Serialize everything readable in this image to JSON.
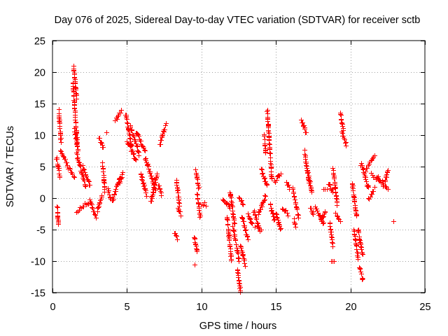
{
  "chart_data": {
    "type": "scatter",
    "title": "Day 076 of 2025, Sidereal Day-to-day VTEC variation (SDTVAR) for receiver sctb",
    "xlabel": "GPS time / hours",
    "ylabel": "SDTVAR / TECUs",
    "xlim": [
      0,
      25
    ],
    "ylim": [
      -15,
      25
    ],
    "xticks": [
      0,
      5,
      10,
      15,
      20,
      25
    ],
    "yticks": [
      -15,
      -10,
      -5,
      0,
      5,
      10,
      15,
      20,
      25
    ],
    "grid": true,
    "marker": "+",
    "series": [
      {
        "name": "SDTVAR",
        "color": "#ff0000",
        "segments": [
          {
            "x": [
              0.25,
              0.48
            ],
            "y": [
              6.5,
              3.5
            ]
          },
          {
            "x": [
              0.3,
              0.38
            ],
            "y": [
              -1.5,
              -4.2
            ]
          },
          {
            "x": [
              0.4,
              0.55
            ],
            "y": [
              13.8,
              9.0
            ]
          },
          {
            "x": [
              0.5,
              1.0
            ],
            "y": [
              7.5,
              5.5
            ]
          },
          {
            "x": [
              1.0,
              1.45
            ],
            "y": [
              5.0,
              3.5
            ]
          },
          {
            "x": [
              1.4,
              1.6
            ],
            "y": [
              21.0,
              16.0
            ]
          },
          {
            "x": [
              1.35,
              1.5
            ],
            "y": [
              18.5,
              13.5
            ]
          },
          {
            "x": [
              1.5,
              1.65
            ],
            "y": [
              13.0,
              9.0
            ]
          },
          {
            "x": [
              1.45,
              1.7
            ],
            "y": [
              11.0,
              7.5
            ]
          },
          {
            "x": [
              1.6,
              2.2
            ],
            "y": [
              7.0,
              2.0
            ]
          },
          {
            "x": [
              1.6,
              2.5
            ],
            "y": [
              -2.0,
              -0.5
            ]
          },
          {
            "x": [
              2.0,
              2.5
            ],
            "y": [
              5.0,
              2.0
            ]
          },
          {
            "x": [
              2.5,
              2.9
            ],
            "y": [
              -0.5,
              -3.0
            ]
          },
          {
            "x": [
              3.0,
              3.3
            ],
            "y": [
              -2.0,
              0.5
            ]
          },
          {
            "x": [
              3.1,
              3.4
            ],
            "y": [
              9.5,
              8.0
            ]
          },
          {
            "x": [
              3.35,
              3.5
            ],
            "y": [
              5.5,
              1.0
            ]
          },
          {
            "x": [
              3.6,
              3.6
            ],
            "y": [
              10.5,
              10.5
            ]
          },
          {
            "x": [
              3.7,
              3.9
            ],
            "y": [
              1.5,
              0.0
            ]
          },
          {
            "x": [
              4.0,
              4.5
            ],
            "y": [
              -0.5,
              3.5
            ]
          },
          {
            "x": [
              4.2,
              4.6
            ],
            "y": [
              12.5,
              13.8
            ]
          },
          {
            "x": [
              4.5,
              4.7
            ],
            "y": [
              2.5,
              4.0
            ]
          },
          {
            "x": [
              4.9,
              5.3
            ],
            "y": [
              13.5,
              8.0
            ]
          },
          {
            "x": [
              5.0,
              5.6
            ],
            "y": [
              9.0,
              6.0
            ]
          },
          {
            "x": [
              5.2,
              5.8
            ],
            "y": [
              11.5,
              7.0
            ]
          },
          {
            "x": [
              5.6,
              6.2
            ],
            "y": [
              10.5,
              7.5
            ]
          },
          {
            "x": [
              5.9,
              6.3
            ],
            "y": [
              4.0,
              0.5
            ]
          },
          {
            "x": [
              6.2,
              6.9
            ],
            "y": [
              6.5,
              1.5
            ]
          },
          {
            "x": [
              6.6,
              7.0
            ],
            "y": [
              -0.5,
              4.0
            ]
          },
          {
            "x": [
              7.1,
              7.3
            ],
            "y": [
              2.0,
              0.5
            ]
          },
          {
            "x": [
              7.2,
              7.6
            ],
            "y": [
              8.5,
              11.8
            ]
          },
          {
            "x": [
              8.2,
              8.35
            ],
            "y": [
              -5.5,
              -6.5
            ]
          },
          {
            "x": [
              8.3,
              8.5
            ],
            "y": [
              3.0,
              -1.0
            ]
          },
          {
            "x": [
              8.4,
              8.6
            ],
            "y": [
              -1.5,
              -2.5
            ]
          },
          {
            "x": [
              9.5,
              9.7
            ],
            "y": [
              -6.0,
              -8.5
            ]
          },
          {
            "x": [
              9.55,
              9.55
            ],
            "y": [
              -10.5,
              -10.5
            ]
          },
          {
            "x": [
              9.6,
              9.8
            ],
            "y": [
              4.5,
              1.5
            ]
          },
          {
            "x": [
              9.7,
              9.9
            ],
            "y": [
              0.5,
              -3.0
            ]
          },
          {
            "x": [
              10.0,
              10.3
            ],
            "y": [
              -1.0,
              -1.0
            ]
          },
          {
            "x": [
              11.4,
              11.9
            ],
            "y": [
              0.0,
              -1.5
            ]
          },
          {
            "x": [
              11.7,
              12.0
            ],
            "y": [
              -3.0,
              -10.0
            ]
          },
          {
            "x": [
              11.9,
              12.2
            ],
            "y": [
              1.0,
              -4.0
            ]
          },
          {
            "x": [
              12.1,
              12.5
            ],
            "y": [
              -4.5,
              -10.0
            ]
          },
          {
            "x": [
              12.4,
              12.6
            ],
            "y": [
              -11.5,
              -14.8
            ]
          },
          {
            "x": [
              12.6,
              12.9
            ],
            "y": [
              -7.5,
              -10.5
            ]
          },
          {
            "x": [
              12.7,
              13.1
            ],
            "y": [
              -3.0,
              -6.5
            ]
          },
          {
            "x": [
              12.5,
              12.8
            ],
            "y": [
              0.0,
              -1.0
            ]
          },
          {
            "x": [
              13.1,
              13.4
            ],
            "y": [
              -2.5,
              -4.0
            ]
          },
          {
            "x": [
              13.5,
              13.9
            ],
            "y": [
              -2.0,
              -5.0
            ]
          },
          {
            "x": [
              13.6,
              14.0
            ],
            "y": [
              -4.5,
              -4.8
            ]
          },
          {
            "x": [
              13.8,
              14.3
            ],
            "y": [
              -2.5,
              0.5
            ]
          },
          {
            "x": [
              14.0,
              14.4
            ],
            "y": [
              4.5,
              2.0
            ]
          },
          {
            "x": [
              14.2,
              14.3
            ],
            "y": [
              10.0,
              7.0
            ]
          },
          {
            "x": [
              14.4,
              14.7
            ],
            "y": [
              14.0,
              3.0
            ]
          },
          {
            "x": [
              14.6,
              14.9
            ],
            "y": [
              -1.0,
              -3.5
            ]
          },
          {
            "x": [
              14.9,
              15.3
            ],
            "y": [
              2.5,
              4.0
            ]
          },
          {
            "x": [
              15.0,
              15.3
            ],
            "y": [
              -2.5,
              -5.0
            ]
          },
          {
            "x": [
              15.4,
              15.8
            ],
            "y": [
              -1.5,
              -2.5
            ]
          },
          {
            "x": [
              15.7,
              15.9
            ],
            "y": [
              2.5,
              1.5
            ]
          },
          {
            "x": [
              16.1,
              16.5
            ],
            "y": [
              1.5,
              -3.0
            ]
          },
          {
            "x": [
              16.2,
              16.3
            ],
            "y": [
              -3.5,
              -4.5
            ]
          },
          {
            "x": [
              16.7,
              17.0
            ],
            "y": [
              12.5,
              10.5
            ]
          },
          {
            "x": [
              16.9,
              17.2
            ],
            "y": [
              7.5,
              2.5
            ]
          },
          {
            "x": [
              17.1,
              17.4
            ],
            "y": [
              4.5,
              1.0
            ]
          },
          {
            "x": [
              17.3,
              17.5
            ],
            "y": [
              -1.5,
              -2.5
            ]
          },
          {
            "x": [
              17.6,
              18.2
            ],
            "y": [
              -1.5,
              -4.0
            ]
          },
          {
            "x": [
              18.0,
              18.3
            ],
            "y": [
              -3.5,
              -2.0
            ]
          },
          {
            "x": [
              18.2,
              18.4
            ],
            "y": [
              1.5,
              1.5
            ]
          },
          {
            "x": [
              18.5,
              18.8
            ],
            "y": [
              2.5,
              1.0
            ]
          },
          {
            "x": [
              18.6,
              18.8
            ],
            "y": [
              -4.0,
              -7.5
            ]
          },
          {
            "x": [
              18.7,
              18.9
            ],
            "y": [
              -10.0,
              -10.0
            ]
          },
          {
            "x": [
              18.8,
              19.1
            ],
            "y": [
              5.0,
              -1.0
            ]
          },
          {
            "x": [
              19.0,
              19.3
            ],
            "y": [
              -2.5,
              -3.5
            ]
          },
          {
            "x": [
              19.3,
              19.5
            ],
            "y": [
              13.5,
              11.0
            ]
          },
          {
            "x": [
              19.4,
              19.7
            ],
            "y": [
              10.5,
              8.5
            ]
          },
          {
            "x": [
              20.1,
              20.4
            ],
            "y": [
              2.5,
              -3.0
            ]
          },
          {
            "x": [
              20.2,
              20.5
            ],
            "y": [
              -5.0,
              -9.5
            ]
          },
          {
            "x": [
              20.5,
              20.8
            ],
            "y": [
              -5.0,
              -9.0
            ]
          },
          {
            "x": [
              20.6,
              20.8
            ],
            "y": [
              -11.0,
              -13.0
            ]
          },
          {
            "x": [
              20.7,
              21.2
            ],
            "y": [
              5.5,
              1.5
            ]
          },
          {
            "x": [
              21.0,
              21.6
            ],
            "y": [
              4.5,
              6.5
            ]
          },
          {
            "x": [
              21.2,
              21.6
            ],
            "y": [
              0.0,
              1.5
            ]
          },
          {
            "x": [
              21.4,
              22.2
            ],
            "y": [
              4.0,
              2.0
            ]
          },
          {
            "x": [
              21.8,
              22.5
            ],
            "y": [
              3.5,
              1.5
            ]
          },
          {
            "x": [
              22.3,
              22.5
            ],
            "y": [
              2.5,
              4.5
            ]
          },
          {
            "x": [
              22.9,
              22.9
            ],
            "y": [
              -3.7,
              -3.7
            ]
          }
        ]
      }
    ]
  }
}
